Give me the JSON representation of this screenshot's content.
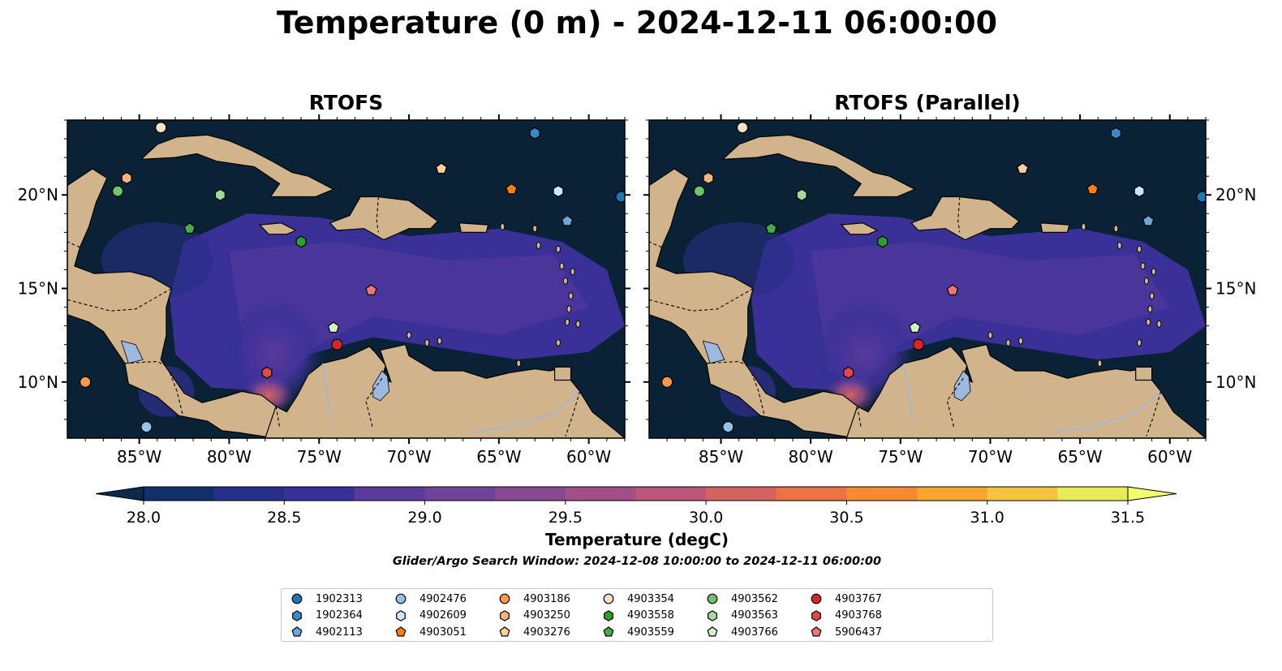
{
  "title": "Temperature (0 m) - 2024-12-11 06:00:00",
  "panels": [
    {
      "title": "RTOFS"
    },
    {
      "title": "RTOFS (Parallel)"
    }
  ],
  "axes": {
    "lon_ticks": [
      "85°W",
      "80°W",
      "75°W",
      "70°W",
      "65°W",
      "60°W"
    ],
    "lat_ticks": [
      "20°N",
      "15°N",
      "10°N"
    ],
    "lon_range": [
      -89,
      -58
    ],
    "lat_range": [
      7,
      24
    ]
  },
  "colorbar": {
    "label": "Temperature (degC)",
    "range": [
      28.0,
      31.5
    ],
    "tick_labels": [
      "28.0",
      "28.5",
      "29.0",
      "29.5",
      "30.0",
      "30.5",
      "31.0",
      "31.5"
    ],
    "extend": "both",
    "colors": [
      "#0d2a4e",
      "#10306a",
      "#252f88",
      "#393099",
      "#5a3a9b",
      "#6e4397",
      "#87498f",
      "#a24f86",
      "#ba5679",
      "#d4625f",
      "#ea7243",
      "#f68a2f",
      "#f9a42d",
      "#f6c33d",
      "#e9ea58",
      "#f2ff6e"
    ]
  },
  "search_window": "Glider/Argo Search Window: 2024-12-08 10:00:00 to 2024-12-11 06:00:00",
  "colors": {
    "ocean_deep": "#0a2236",
    "ocean_warm": "#3b3298",
    "land": "#d2b48c",
    "lake": "#9cb9df"
  },
  "floats": [
    {
      "id": "1902313",
      "marker": "circle",
      "color": "#1f77b4",
      "lon": -58.2,
      "lat": 19.9
    },
    {
      "id": "1902364",
      "marker": "hexagon",
      "color": "#3a88c9",
      "lon": -63.0,
      "lat": 23.3
    },
    {
      "id": "4902113",
      "marker": "pentagon",
      "color": "#69a7dc",
      "lon": -61.2,
      "lat": 18.6
    },
    {
      "id": "4902476",
      "marker": "circle",
      "color": "#93c3e8",
      "lon": -84.6,
      "lat": 7.6
    },
    {
      "id": "4902609",
      "marker": "hexagon",
      "color": "#cfe6f7",
      "lon": -61.7,
      "lat": 20.2
    },
    {
      "id": "4903051",
      "marker": "pentagon",
      "color": "#ff7f0e",
      "lon": -64.3,
      "lat": 20.3
    },
    {
      "id": "4903186",
      "marker": "circle",
      "color": "#fd9a4a",
      "lon": -88.0,
      "lat": 10.0
    },
    {
      "id": "4903250",
      "marker": "hexagon",
      "color": "#fdb37a",
      "lon": -85.7,
      "lat": 20.9
    },
    {
      "id": "4903276",
      "marker": "pentagon",
      "color": "#fdcf9e",
      "lon": -68.2,
      "lat": 21.4
    },
    {
      "id": "4903354",
      "marker": "circle",
      "color": "#fee0c4",
      "lon": -83.8,
      "lat": 23.6
    },
    {
      "id": "4903558",
      "marker": "hexagon",
      "color": "#2ca02c",
      "lon": -76.0,
      "lat": 17.5
    },
    {
      "id": "4903559",
      "marker": "pentagon",
      "color": "#46ad46",
      "lon": -82.2,
      "lat": 18.2
    },
    {
      "id": "4903562",
      "marker": "circle",
      "color": "#6cc46c",
      "lon": -86.2,
      "lat": 20.2
    },
    {
      "id": "4903563",
      "marker": "hexagon",
      "color": "#a3dc9a",
      "lon": -80.5,
      "lat": 20.0
    },
    {
      "id": "4903766",
      "marker": "pentagon",
      "color": "#d1f2c4",
      "lon": -74.2,
      "lat": 12.9
    },
    {
      "id": "4903767",
      "marker": "circle",
      "color": "#d62728",
      "lon": -74.0,
      "lat": 12.0
    },
    {
      "id": "4903768",
      "marker": "hexagon",
      "color": "#df4a48",
      "lon": -77.9,
      "lat": 10.5
    },
    {
      "id": "5906437",
      "marker": "pentagon",
      "color": "#f07574",
      "lon": -72.1,
      "lat": 14.9
    }
  ]
}
